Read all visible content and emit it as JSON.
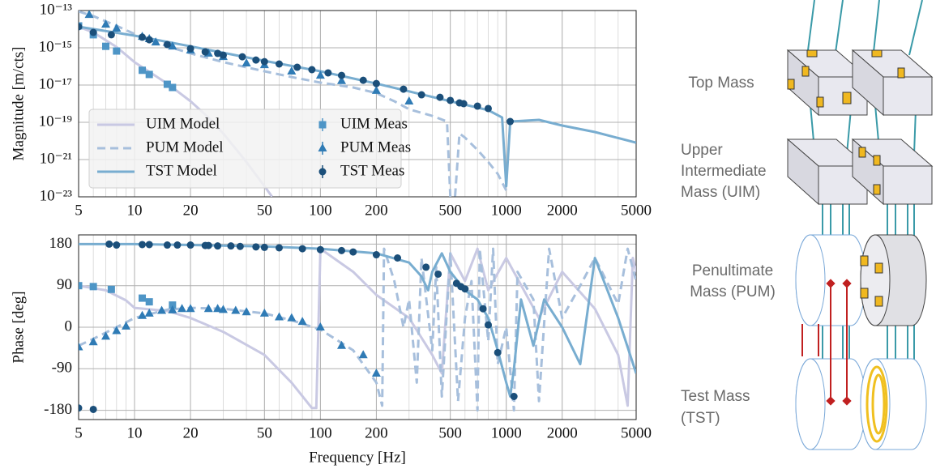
{
  "chart_data": [
    {
      "type": "line",
      "xlog": true,
      "ylog": true,
      "ylabel": "Magnitude [m/cts]",
      "xlim": [
        5,
        5000
      ],
      "ylim": [
        1e-23,
        1e-13
      ],
      "xticks": [
        5,
        10,
        20,
        50,
        100,
        200,
        500,
        1000,
        2000,
        5000
      ],
      "yticks": [
        {
          "value": 1e-23,
          "label": "10⁻²³"
        },
        {
          "value": 1e-21,
          "label": "10⁻²¹"
        },
        {
          "value": 1e-19,
          "label": "10⁻¹⁹"
        },
        {
          "value": 1e-17,
          "label": "10⁻¹⁷"
        },
        {
          "value": 1e-15,
          "label": "10⁻¹⁵"
        },
        {
          "value": 1e-13,
          "label": "10⁻¹³"
        }
      ],
      "grid": true,
      "legend": "lower left",
      "series": [
        {
          "name": "UIM Model",
          "color": "#c9c9e3",
          "style": "solid",
          "marker": null,
          "x": [
            5,
            6,
            8,
            10,
            15,
            20,
            25,
            30,
            40,
            50,
            55
          ],
          "values": [
            1.35e-14,
            6.7e-15,
            1.1e-15,
            1.7e-16,
            1.2e-17,
            1.35e-18,
            1.8e-19,
            2.5e-20,
            7.4e-22,
            3.7e-23,
            1e-23
          ]
        },
        {
          "name": "PUM Model",
          "color": "#a7bfdc",
          "style": "dashed",
          "marker": null,
          "x": [
            5,
            6,
            8,
            10,
            15,
            20,
            30,
            50,
            70,
            100,
            150,
            200,
            250,
            300,
            400,
            480,
            500,
            530,
            560,
            600,
            700,
            800,
            900,
            1000
          ],
          "values": [
            9e-14,
            5e-14,
            1.5e-14,
            5.5e-15,
            1.2e-15,
            5e-16,
            1.7e-16,
            5.5e-17,
            2.7e-17,
            1.35e-17,
            7.4e-18,
            3.7e-18,
            1.35e-18,
            5e-19,
            2.2e-19,
            1.1e-19,
            1e-23,
            1e-23,
            2.5e-20,
            1.5e-20,
            3.3e-21,
            7.4e-22,
            1.7e-22,
            2.2e-23
          ]
        },
        {
          "name": "TST Model",
          "color": "#78add0",
          "style": "solid",
          "marker": null,
          "x": [
            5,
            10,
            20,
            50,
            100,
            200,
            500,
            800,
            950,
            1000,
            1050,
            1500,
            2000,
            3000,
            5000
          ],
          "values": [
            1.35e-14,
            4.5e-15,
            1.2e-15,
            2e-16,
            5.5e-17,
            1.2e-17,
            1.35e-18,
            4.5e-19,
            1.8e-19,
            3.7e-23,
            1.1e-19,
            1.35e-19,
            6.7e-20,
            3e-20,
            8e-21
          ]
        },
        {
          "name": "UIM Meas",
          "color": "#4e95c6",
          "style": null,
          "marker": "square",
          "x": [
            5,
            6,
            7,
            8,
            11,
            12,
            15,
            16
          ],
          "values": [
            1.5e-14,
            5e-15,
            1.2e-15,
            6.7e-16,
            6.2e-17,
            3.7e-17,
            1.1e-17,
            7.4e-18
          ]
        },
        {
          "name": "PUM Meas",
          "color": "#2f7bb5",
          "style": null,
          "marker": "triangle",
          "x": [
            5.7,
            7,
            8,
            11,
            12,
            13,
            16,
            20,
            25,
            30,
            40,
            50,
            70,
            100,
            130,
            200,
            300
          ],
          "values": [
            6e-14,
            1.8e-14,
            1.1e-14,
            4e-15,
            3e-15,
            2e-15,
            1.2e-15,
            7.4e-16,
            5e-16,
            3.3e-16,
            1.5e-16,
            1.2e-16,
            5.5e-17,
            3.3e-17,
            1.7e-17,
            5e-18,
            1.35e-18
          ]
        },
        {
          "name": "TST Meas",
          "color": "#1b4f7a",
          "style": null,
          "marker": "circle",
          "x": [
            5,
            6,
            7.5,
            11,
            12,
            15,
            20,
            24,
            28,
            30,
            38,
            45,
            50,
            60,
            75,
            90,
            110,
            130,
            170,
            200,
            280,
            350,
            440,
            500,
            560,
            590,
            700,
            800,
            1050
          ],
          "values": [
            1.35e-14,
            6.7e-15,
            5e-15,
            3.7e-15,
            2.7e-15,
            1.5e-15,
            9e-16,
            6e-16,
            5e-16,
            4e-16,
            3.3e-16,
            2.2e-16,
            1.8e-16,
            1.35e-16,
            9e-17,
            6.7e-17,
            4.5e-17,
            3.3e-17,
            1.8e-17,
            1.2e-17,
            6e-18,
            3e-18,
            2.2e-18,
            1.5e-18,
            1.1e-18,
            1e-18,
            7.4e-19,
            5.5e-19,
            1.1e-19
          ]
        }
      ]
    },
    {
      "type": "line",
      "xlog": true,
      "ylog": false,
      "ylabel": "Phase [deg]",
      "xlabel": "Frequency [Hz]",
      "xlim": [
        5,
        5000
      ],
      "ylim": [
        -200,
        200
      ],
      "xticks": [
        5,
        10,
        20,
        50,
        100,
        200,
        500,
        1000,
        2000,
        5000
      ],
      "yticks": [
        -180,
        -90,
        0,
        90,
        180
      ],
      "grid": true,
      "series": [
        {
          "color": "#c9c9e3",
          "style": "solid",
          "marker": null,
          "x": [
            5,
            7,
            9,
            10,
            15,
            20,
            30,
            50,
            70,
            90,
            95,
            100,
            150,
            200,
            300,
            400,
            450,
            500,
            600,
            700,
            800,
            1000,
            1500,
            2000,
            3000,
            4000,
            4500,
            4800,
            5000
          ],
          "values": [
            90,
            80,
            58,
            42,
            35,
            20,
            -10,
            -60,
            -120,
            -175,
            -175,
            170,
            120,
            70,
            20,
            -60,
            -100,
            160,
            100,
            170,
            80,
            150,
            20,
            120,
            40,
            -60,
            -170,
            150,
            120
          ]
        },
        {
          "color": "#a7bfdc",
          "style": "dashed",
          "marker": null,
          "x": [
            5,
            6,
            8,
            10,
            15,
            20,
            30,
            50,
            70,
            100,
            150,
            200,
            215,
            220,
            250,
            280,
            300,
            330,
            350,
            400,
            420,
            450,
            500,
            550,
            600,
            650,
            700,
            720,
            800,
            850,
            900,
            1000,
            1100,
            1150,
            1400,
            1500,
            1700,
            2000,
            2500,
            3000,
            4000,
            4500,
            5000
          ],
          "values": [
            -40,
            -25,
            0,
            20,
            38,
            42,
            40,
            30,
            15,
            -5,
            -50,
            -120,
            -170,
            170,
            100,
            0,
            60,
            -120,
            150,
            -50,
            130,
            -150,
            160,
            -160,
            20,
            100,
            -180,
            170,
            -30,
            170,
            -80,
            0,
            -180,
            120,
            60,
            -160,
            170,
            20,
            90,
            150,
            50,
            170,
            100
          ]
        },
        {
          "color": "#78add0",
          "style": "solid",
          "marker": null,
          "x": [
            5,
            10,
            20,
            50,
            100,
            200,
            300,
            350,
            380,
            400,
            450,
            500,
            600,
            700,
            800,
            900,
            1000,
            1050,
            1100,
            1200,
            1400,
            1600,
            2000,
            2500,
            3000,
            4000,
            5000
          ],
          "values": [
            180,
            180,
            178,
            175,
            170,
            160,
            140,
            110,
            80,
            120,
            160,
            120,
            80,
            60,
            20,
            -50,
            -120,
            -150,
            -90,
            60,
            -40,
            60,
            0,
            -80,
            150,
            20,
            -100
          ]
        },
        {
          "color": "#4e95c6",
          "style": null,
          "marker": "square",
          "x": [
            5,
            6,
            7.5,
            11,
            12,
            16
          ],
          "values": [
            90,
            88,
            82,
            63,
            55,
            48
          ]
        },
        {
          "color": "#2f7bb5",
          "style": null,
          "marker": "triangle",
          "x": [
            5,
            6,
            7,
            8,
            9,
            11,
            12,
            14,
            16,
            18,
            20,
            25,
            28,
            30,
            35,
            40,
            50,
            60,
            70,
            80,
            100,
            130,
            170,
            200
          ],
          "values": [
            -43,
            -32,
            -20,
            -8,
            2,
            25,
            30,
            36,
            37,
            40,
            40,
            40,
            40,
            38,
            36,
            33,
            30,
            22,
            20,
            12,
            0,
            -40,
            -60,
            -100
          ]
        },
        {
          "color": "#1b4f7a",
          "style": null,
          "marker": "circle",
          "x": [
            5,
            6,
            7.3,
            8,
            11,
            12,
            15,
            17,
            20,
            24,
            25,
            28,
            33,
            37,
            45,
            50,
            60,
            80,
            100,
            130,
            150,
            200,
            260,
            370,
            430,
            540,
            570,
            600,
            750,
            800,
            900,
            1100
          ],
          "values": [
            -175,
            -178,
            180,
            178,
            179,
            179,
            178,
            178,
            178,
            177,
            177,
            176,
            176,
            175,
            174,
            173,
            172,
            170,
            168,
            166,
            163,
            157,
            150,
            130,
            115,
            95,
            88,
            83,
            40,
            5,
            -55,
            -150
          ]
        }
      ]
    }
  ],
  "diagram": {
    "labels": [
      [
        "Top Mass"
      ],
      [
        "Upper",
        "Intermediate",
        "Mass (UIM)"
      ],
      [
        "Penultimate",
        "Mass (PUM)"
      ],
      [
        "Test Mass",
        "(TST)"
      ]
    ]
  }
}
